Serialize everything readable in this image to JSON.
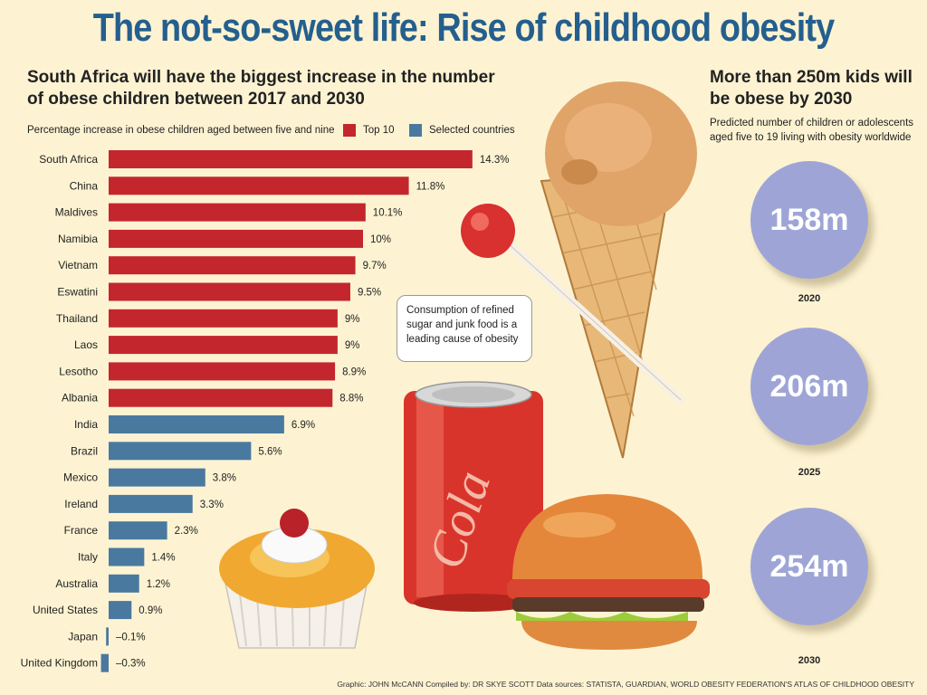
{
  "title": "The not-so-sweet life: Rise of childhood obesity",
  "left_heading": "South Africa will have the biggest increase in the number of obese children between 2017 and 2030",
  "chart_caption": "Percentage increase in obese children aged between five and nine",
  "legend": [
    {
      "label": "Top 10",
      "color": "#c4262e"
    },
    {
      "label": "Selected countries",
      "color": "#4a79a0"
    }
  ],
  "chart_data": {
    "type": "bar",
    "orientation": "horizontal",
    "title": "Percentage increase in obese children aged between five and nine",
    "categories": [
      "South Africa",
      "China",
      "Maldives",
      "Namibia",
      "Vietnam",
      "Eswatini",
      "Thailand",
      "Laos",
      "Lesotho",
      "Albania",
      "India",
      "Brazil",
      "Mexico",
      "Ireland",
      "France",
      "Italy",
      "Australia",
      "United States",
      "Japan",
      "United Kingdom"
    ],
    "values": [
      14.3,
      11.8,
      10.1,
      10,
      9.7,
      9.5,
      9,
      9,
      8.9,
      8.8,
      6.9,
      5.6,
      3.8,
      3.3,
      2.3,
      1.4,
      1.2,
      0.9,
      -0.1,
      -0.3
    ],
    "value_labels": [
      "14.3%",
      "11.8%",
      "10.1%",
      "10%",
      "9.7%",
      "9.5%",
      "9%",
      "9%",
      "8.9%",
      "8.8%",
      "6.9%",
      "5.6%",
      "3.8%",
      "3.3%",
      "2.3%",
      "1.4%",
      "1.2%",
      "0.9%",
      "–0.1%",
      "–0.3%"
    ],
    "groups": [
      "Top 10",
      "Top 10",
      "Top 10",
      "Top 10",
      "Top 10",
      "Top 10",
      "Top 10",
      "Top 10",
      "Top 10",
      "Top 10",
      "Selected countries",
      "Selected countries",
      "Selected countries",
      "Selected countries",
      "Selected countries",
      "Selected countries",
      "Selected countries",
      "Selected countries",
      "Selected countries",
      "Selected countries"
    ],
    "xlim": [
      -0.3,
      14.3
    ],
    "grid": false,
    "legend_position": "top-right"
  },
  "right_heading": "More than 250m kids will be obese by 2030",
  "right_note": "Predicted number of children or adolescents aged five to 19 living with obesity worldwide",
  "projections": [
    {
      "value": "158m",
      "year": "2020"
    },
    {
      "value": "206m",
      "year": "2025"
    },
    {
      "value": "254m",
      "year": "2030"
    }
  ],
  "callout": "Consumption of refined sugar and junk food is a leading cause of obesity",
  "can_text": "Cola",
  "footer": "Graphic: JOHN McCANN  Compiled by: DR SKYE SCOTT  Data sources: STATISTA, GUARDIAN, WORLD OBESITY FEDERATION'S ATLAS OF CHILDHOOD OBESITY",
  "colors": {
    "top10": "#c4262e",
    "selected": "#4a79a0",
    "bubble": "#9ea5d6",
    "title": "#245f8e",
    "background": "#fdf3d2"
  }
}
